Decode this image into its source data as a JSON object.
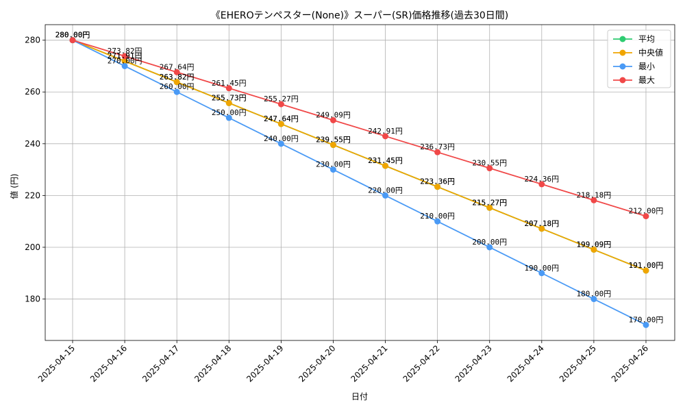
{
  "chart_data": {
    "type": "line",
    "title": "《EHEROテンペスター(None)》スーパー(SR)価格推移(過去30日間)",
    "xlabel": "日付",
    "ylabel": "値 (円)",
    "ylim": [
      164,
      286
    ],
    "yticks": [
      180,
      200,
      220,
      240,
      260,
      280
    ],
    "grid": true,
    "legend_position": "top-right",
    "label_suffix": "円",
    "categories": [
      "2025-04-15",
      "2025-04-16",
      "2025-04-17",
      "2025-04-18",
      "2025-04-19",
      "2025-04-20",
      "2025-04-21",
      "2025-04-22",
      "2025-04-23",
      "2025-04-24",
      "2025-04-25",
      "2025-04-26"
    ],
    "series": [
      {
        "name": "平均",
        "color": "#2ecc71",
        "values": [
          280.0,
          271.91,
          263.82,
          255.73,
          247.64,
          239.55,
          231.45,
          223.36,
          215.27,
          207.18,
          199.09,
          191.0
        ]
      },
      {
        "name": "中央値",
        "color": "#f0a500",
        "values": [
          280.0,
          271.91,
          263.82,
          255.73,
          247.64,
          239.55,
          231.45,
          223.36,
          215.27,
          207.18,
          199.09,
          191.0
        ]
      },
      {
        "name": "最小",
        "color": "#4a9af5",
        "values": [
          280.0,
          270.0,
          260.0,
          250.0,
          240.0,
          230.0,
          220.0,
          210.0,
          200.0,
          190.0,
          180.0,
          170.0
        ]
      },
      {
        "name": "最大",
        "color": "#f04848",
        "values": [
          280.0,
          273.82,
          267.64,
          261.45,
          255.27,
          249.09,
          242.91,
          236.73,
          230.55,
          224.36,
          218.18,
          212.0
        ]
      }
    ]
  }
}
